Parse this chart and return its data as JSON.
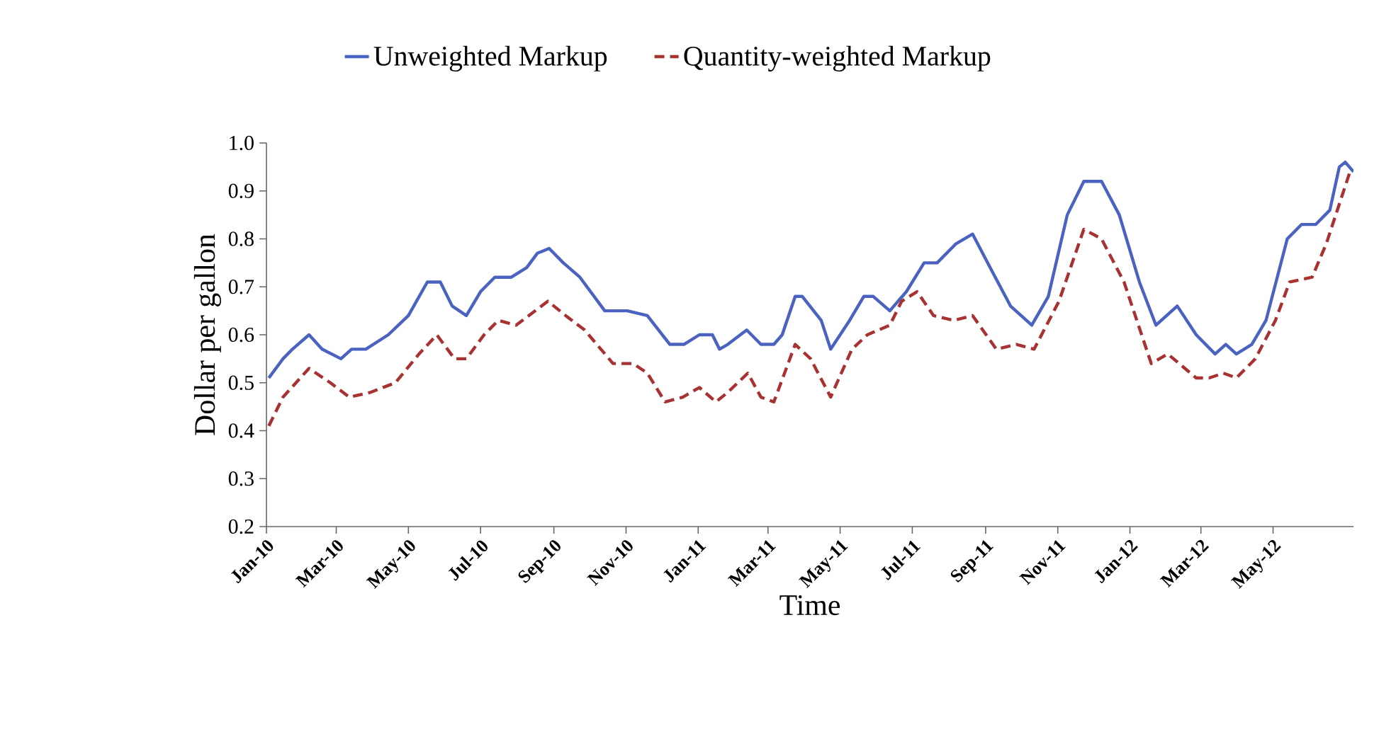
{
  "chart_data": {
    "type": "line",
    "xlabel": "Time",
    "ylabel": "Dollar per gallon",
    "xlim": [
      "2010-01-01",
      "2012-07-08"
    ],
    "xticks": [
      {
        "value": "2010-01-01",
        "label": "Jan-10"
      },
      {
        "value": "2010-03-01",
        "label": "Mar-10"
      },
      {
        "value": "2010-05-01",
        "label": "May-10"
      },
      {
        "value": "2010-07-01",
        "label": "Jul-10"
      },
      {
        "value": "2010-09-01",
        "label": "Sep-10"
      },
      {
        "value": "2010-11-01",
        "label": "Nov-10"
      },
      {
        "value": "2011-01-01",
        "label": "Jan-11"
      },
      {
        "value": "2011-03-01",
        "label": "Mar-11"
      },
      {
        "value": "2011-05-01",
        "label": "May-11"
      },
      {
        "value": "2011-07-01",
        "label": "Jul-11"
      },
      {
        "value": "2011-09-01",
        "label": "Sep-11"
      },
      {
        "value": "2011-11-01",
        "label": "Nov-11"
      },
      {
        "value": "2012-01-01",
        "label": "Jan-12"
      },
      {
        "value": "2012-03-01",
        "label": "Mar-12"
      },
      {
        "value": "2012-05-01",
        "label": "May-12"
      }
    ],
    "ylim": [
      0.2,
      1.0
    ],
    "yticks": [
      0.2,
      0.3,
      0.4,
      0.5,
      0.6,
      0.7,
      0.8,
      0.9,
      {
        "value": 1.0,
        "label": "1.0"
      }
    ],
    "grid": false,
    "legend": "top",
    "marker": "none",
    "series": [
      {
        "name": "Unweighted Markup",
        "color": "#4a62c0",
        "line_style": "solid",
        "x": [
          "2010-01-03",
          "2010-01-15",
          "2010-01-23",
          "2010-02-06",
          "2010-02-17",
          "2010-03-05",
          "2010-03-14",
          "2010-03-26",
          "2010-04-14",
          "2010-05-01",
          "2010-05-17",
          "2010-05-28",
          "2010-06-07",
          "2010-06-19",
          "2010-07-01",
          "2010-07-13",
          "2010-07-27",
          "2010-08-09",
          "2010-08-18",
          "2010-08-28",
          "2010-09-09",
          "2010-09-23",
          "2010-10-14",
          "2010-11-02",
          "2010-11-19",
          "2010-12-08",
          "2010-12-20",
          "2011-01-02",
          "2011-01-13",
          "2011-01-19",
          "2011-01-26",
          "2011-02-11",
          "2011-02-23",
          "2011-03-06",
          "2011-03-13",
          "2011-03-24",
          "2011-03-30",
          "2011-04-15",
          "2011-04-23",
          "2011-05-09",
          "2011-05-21",
          "2011-05-29",
          "2011-06-12",
          "2011-06-26",
          "2011-07-11",
          "2011-07-22",
          "2011-08-07",
          "2011-08-21",
          "2011-09-07",
          "2011-09-22",
          "2011-10-10",
          "2011-10-24",
          "2011-11-09",
          "2011-11-23",
          "2011-12-08",
          "2011-12-23",
          "2012-01-09",
          "2012-01-23",
          "2012-02-10",
          "2012-02-26",
          "2012-03-13",
          "2012-03-22",
          "2012-03-31",
          "2012-04-13",
          "2012-04-25",
          "2012-05-13",
          "2012-05-25",
          "2012-06-06",
          "2012-06-18",
          "2012-06-26",
          "2012-07-01",
          "2012-07-08"
        ],
        "values": [
          0.51,
          0.55,
          0.57,
          0.6,
          0.57,
          0.55,
          0.57,
          0.57,
          0.6,
          0.64,
          0.71,
          0.71,
          0.66,
          0.64,
          0.69,
          0.72,
          0.72,
          0.74,
          0.77,
          0.78,
          0.75,
          0.72,
          0.65,
          0.65,
          0.64,
          0.58,
          0.58,
          0.6,
          0.6,
          0.57,
          0.58,
          0.61,
          0.58,
          0.58,
          0.6,
          0.68,
          0.68,
          0.63,
          0.57,
          0.63,
          0.68,
          0.68,
          0.65,
          0.69,
          0.75,
          0.75,
          0.79,
          0.81,
          0.73,
          0.66,
          0.62,
          0.68,
          0.85,
          0.92,
          0.92,
          0.85,
          0.71,
          0.62,
          0.66,
          0.6,
          0.56,
          0.58,
          0.56,
          0.58,
          0.63,
          0.8,
          0.83,
          0.83,
          0.86,
          0.95,
          0.96,
          0.94
        ]
      },
      {
        "name": "Quantity-weighted Markup",
        "color": "#a83232",
        "line_style": "dashed",
        "x": [
          "2010-01-03",
          "2010-01-15",
          "2010-02-06",
          "2010-02-24",
          "2010-03-12",
          "2010-03-30",
          "2010-04-20",
          "2010-05-10",
          "2010-05-25",
          "2010-06-09",
          "2010-06-19",
          "2010-07-04",
          "2010-07-16",
          "2010-07-31",
          "2010-08-27",
          "2010-09-11",
          "2010-09-27",
          "2010-10-21",
          "2010-11-07",
          "2010-11-19",
          "2010-12-04",
          "2010-12-19",
          "2011-01-02",
          "2011-01-16",
          "2011-01-26",
          "2011-02-12",
          "2011-02-23",
          "2011-03-06",
          "2011-03-24",
          "2011-04-06",
          "2011-04-23",
          "2011-05-11",
          "2011-05-24",
          "2011-06-12",
          "2011-06-22",
          "2011-07-05",
          "2011-07-19",
          "2011-08-05",
          "2011-08-21",
          "2011-09-10",
          "2011-09-27",
          "2011-10-12",
          "2011-11-02",
          "2011-11-23",
          "2011-12-08",
          "2011-12-27",
          "2012-01-19",
          "2012-02-02",
          "2012-02-26",
          "2012-03-08",
          "2012-03-20",
          "2012-03-31",
          "2012-04-16",
          "2012-05-03",
          "2012-05-15",
          "2012-06-03",
          "2012-06-15",
          "2012-07-05"
        ],
        "values": [
          0.41,
          0.47,
          0.53,
          0.5,
          0.47,
          0.48,
          0.5,
          0.56,
          0.6,
          0.55,
          0.55,
          0.6,
          0.63,
          0.62,
          0.67,
          0.64,
          0.61,
          0.54,
          0.54,
          0.52,
          0.46,
          0.47,
          0.49,
          0.46,
          0.48,
          0.52,
          0.47,
          0.46,
          0.58,
          0.55,
          0.47,
          0.57,
          0.6,
          0.62,
          0.67,
          0.69,
          0.64,
          0.63,
          0.64,
          0.57,
          0.58,
          0.57,
          0.67,
          0.82,
          0.8,
          0.71,
          0.54,
          0.56,
          0.51,
          0.51,
          0.52,
          0.51,
          0.55,
          0.63,
          0.71,
          0.72,
          0.79,
          0.94
        ]
      }
    ]
  }
}
